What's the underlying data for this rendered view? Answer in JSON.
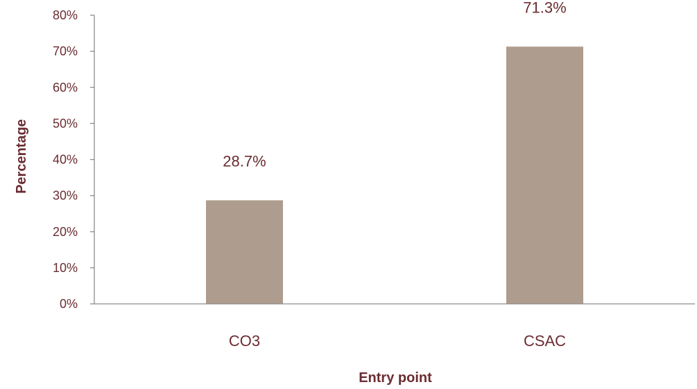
{
  "chart_data": {
    "type": "bar",
    "categories": [
      "CO3",
      "CSAC"
    ],
    "values": [
      28.7,
      71.3
    ],
    "data_labels": [
      "28.7%",
      "71.3%"
    ],
    "xlabel": "Entry point",
    "ylabel": "Percentage",
    "ylim": [
      0,
      80
    ],
    "yticks": [
      0,
      10,
      20,
      30,
      40,
      50,
      60,
      70,
      80
    ],
    "ytick_labels": [
      "0%",
      "10%",
      "20%",
      "30%",
      "40%",
      "50%",
      "60%",
      "70%",
      "80%"
    ],
    "grid": false,
    "legend": "none",
    "bar_color": "#ae9c8e",
    "text_color": "#6b2c31"
  }
}
